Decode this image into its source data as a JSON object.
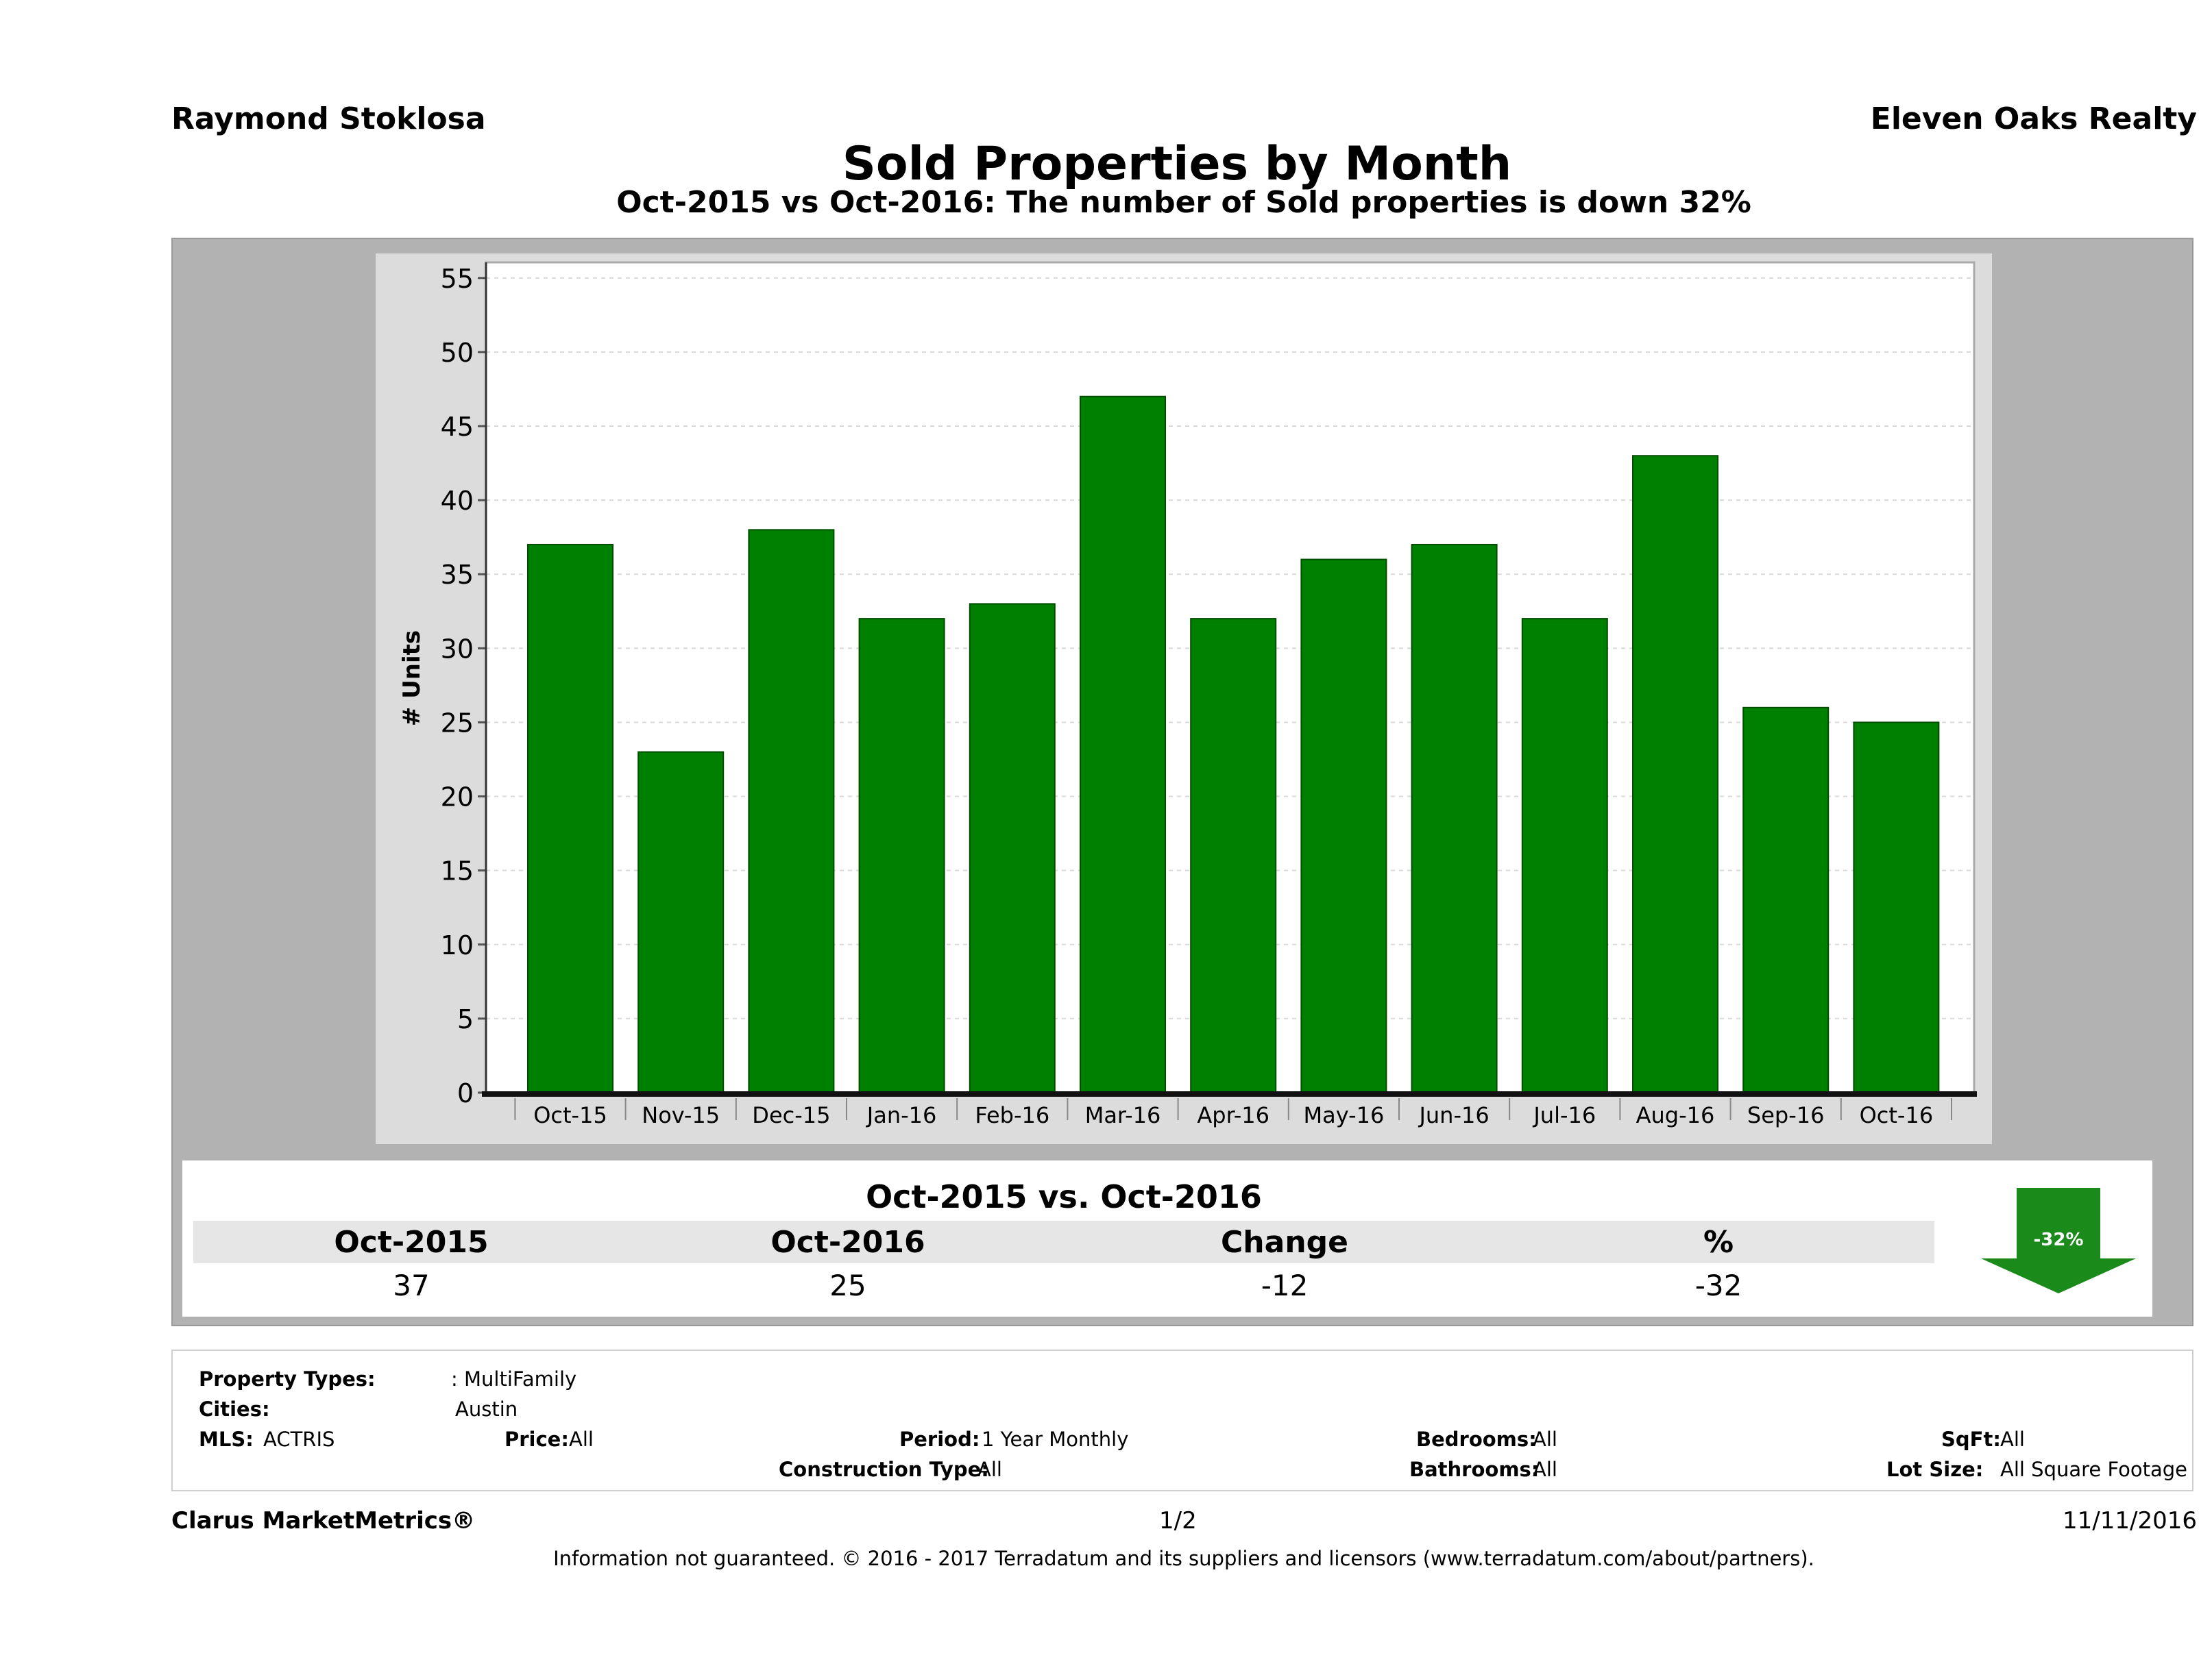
{
  "header": {
    "agent": "Raymond Stoklosa",
    "company": "Eleven Oaks Realty",
    "title": "Sold Properties by Month",
    "subtitle": "Oct-2015 vs Oct-2016: The number of Sold  properties is down 32%"
  },
  "chart_data": {
    "type": "bar",
    "categories": [
      "Oct-15",
      "Nov-15",
      "Dec-15",
      "Jan-16",
      "Feb-16",
      "Mar-16",
      "Apr-16",
      "May-16",
      "Jun-16",
      "Jul-16",
      "Aug-16",
      "Sep-16",
      "Oct-16"
    ],
    "values": [
      37,
      23,
      38,
      32,
      33,
      47,
      32,
      36,
      37,
      32,
      43,
      26,
      25
    ],
    "ylabel": "# Units",
    "ylim": [
      0,
      55
    ],
    "yticks": [
      0,
      5,
      10,
      15,
      20,
      25,
      30,
      35,
      40,
      45,
      50,
      55
    ],
    "grid": true,
    "bar_color": "#008000"
  },
  "summary": {
    "title": "Oct-2015 vs. Oct-2016",
    "headers": [
      "Oct-2015",
      "Oct-2016",
      "Change",
      "%"
    ],
    "values": [
      "37",
      "25",
      "-12",
      "-32"
    ],
    "badge": "-32%",
    "badge_color": "#1a8a1a"
  },
  "filters": {
    "property_types_label": "Property Types:",
    "property_types_value": ": MultiFamily",
    "cities_label": "Cities:",
    "cities_value": "Austin",
    "mls_label": "MLS:",
    "mls_value": "ACTRIS",
    "price_label": "Price:",
    "price_value": "All",
    "period_label": "Period:",
    "period_value": "1 Year Monthly",
    "construction_label": "Construction Type:",
    "construction_value": "All",
    "bedrooms_label": "Bedrooms:",
    "bedrooms_value": "All",
    "bathrooms_label": "Bathrooms:",
    "bathrooms_value": "All",
    "sqft_label": "SqFt:",
    "sqft_value": "All",
    "lot_label": "Lot Size:",
    "lot_value": "All Square Footage"
  },
  "footer": {
    "brand": "Clarus MarketMetrics®",
    "page": "1/2",
    "date": "11/11/2016",
    "disclaimer": "Information not guaranteed. © 2016 - 2017 Terradatum and its suppliers and licensors (www.terradatum.com/about/partners)."
  }
}
